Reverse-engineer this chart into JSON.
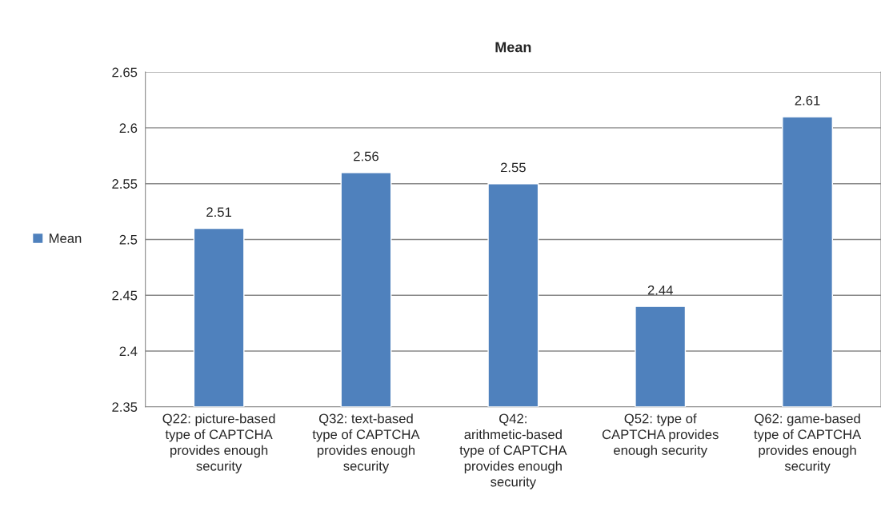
{
  "chart_data": {
    "type": "bar",
    "title": "Mean",
    "categories": [
      "Q22: picture-based type of CAPTCHA provides enough security",
      "Q32: text-based type of CAPTCHA provides enough security",
      "Q42: arithmetic-based type of CAPTCHA provides enough security",
      "Q52: type of CAPTCHA provides enough security",
      "Q62: game-based type of CAPTCHA provides enough security"
    ],
    "series": [
      {
        "name": "Mean",
        "color": "#4f81bd",
        "values": [
          2.51,
          2.56,
          2.55,
          2.44,
          2.61
        ]
      }
    ],
    "ylim": [
      2.35,
      2.65
    ],
    "yticks": [
      2.35,
      2.4,
      2.45,
      2.5,
      2.55,
      2.6,
      2.65
    ],
    "data_labels": true,
    "grid": "y",
    "legend": "left"
  }
}
